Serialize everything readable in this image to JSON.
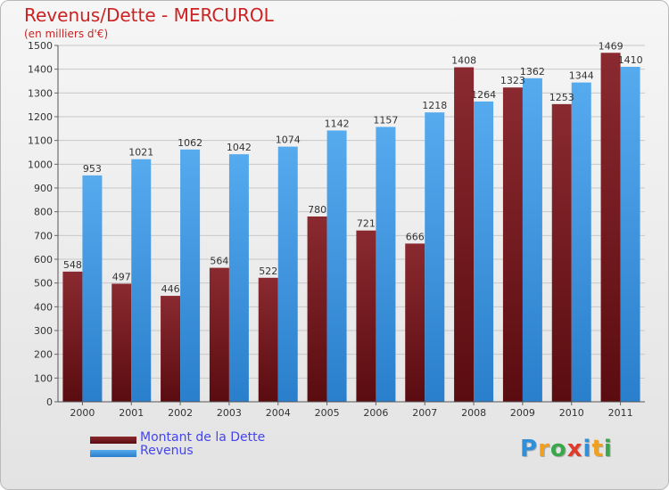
{
  "title": "Revenus/Dette - MERCUROL",
  "subtitle": "(en milliers d'€)",
  "colors": {
    "dette": "#7a1e24",
    "revenus": "#3b96e0"
  },
  "chart_data": {
    "type": "bar",
    "categories": [
      "2000",
      "2001",
      "2002",
      "2003",
      "2004",
      "2005",
      "2006",
      "2007",
      "2008",
      "2009",
      "2010",
      "2011"
    ],
    "series": [
      {
        "name": "Montant de la Dette",
        "values": [
          548,
          497,
          446,
          564,
          522,
          780,
          721,
          666,
          1408,
          1323,
          1253,
          1469
        ]
      },
      {
        "name": "Revenus",
        "values": [
          953,
          1021,
          1062,
          1042,
          1074,
          1142,
          1157,
          1218,
          1264,
          1362,
          1344,
          1410
        ]
      }
    ],
    "ylim": [
      0,
      1500
    ],
    "yticks": [
      0,
      100,
      200,
      300,
      400,
      500,
      600,
      700,
      800,
      900,
      1000,
      1100,
      1200,
      1300,
      1400,
      1500
    ],
    "grid": true,
    "legend": "bottom-left"
  },
  "logo": {
    "letters": [
      {
        "ch": "P",
        "color": "#2f8fd8"
      },
      {
        "ch": "r",
        "color": "#f0a020"
      },
      {
        "ch": "o",
        "color": "#3aa84a"
      },
      {
        "ch": "x",
        "color": "#e03a2a"
      },
      {
        "ch": "i",
        "color": "#2f8fd8"
      },
      {
        "ch": "t",
        "color": "#f0a020"
      },
      {
        "ch": "i",
        "color": "#3aa84a"
      }
    ]
  }
}
